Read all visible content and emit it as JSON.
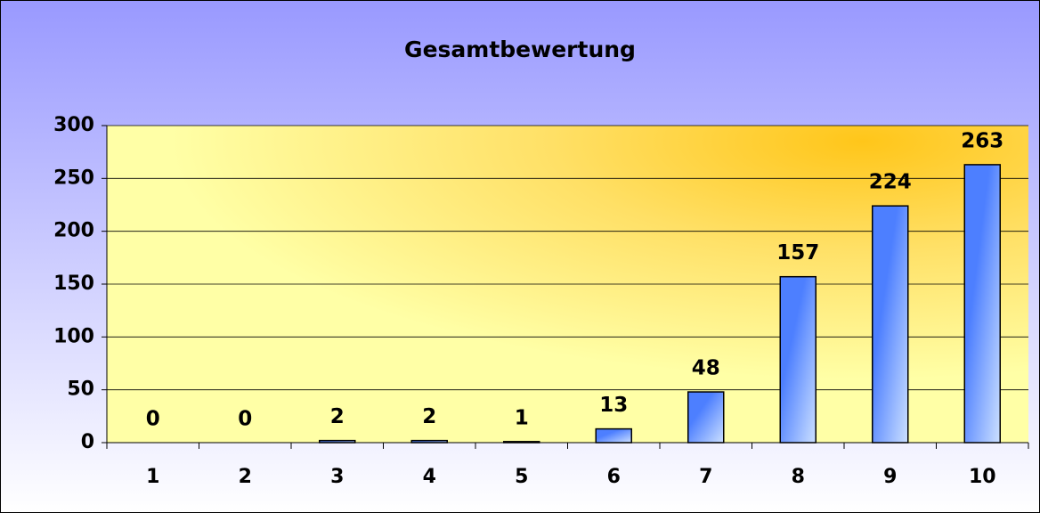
{
  "chart_data": {
    "type": "bar",
    "title": "Gesamtbewertung",
    "categories": [
      "1",
      "2",
      "3",
      "4",
      "5",
      "6",
      "7",
      "8",
      "9",
      "10"
    ],
    "values": [
      0,
      0,
      2,
      2,
      1,
      13,
      48,
      157,
      224,
      263
    ],
    "color": "#4d7fff",
    "ylim": [
      0,
      300
    ],
    "yticks": [
      0,
      50,
      100,
      150,
      200,
      250,
      300
    ],
    "grid": true
  }
}
